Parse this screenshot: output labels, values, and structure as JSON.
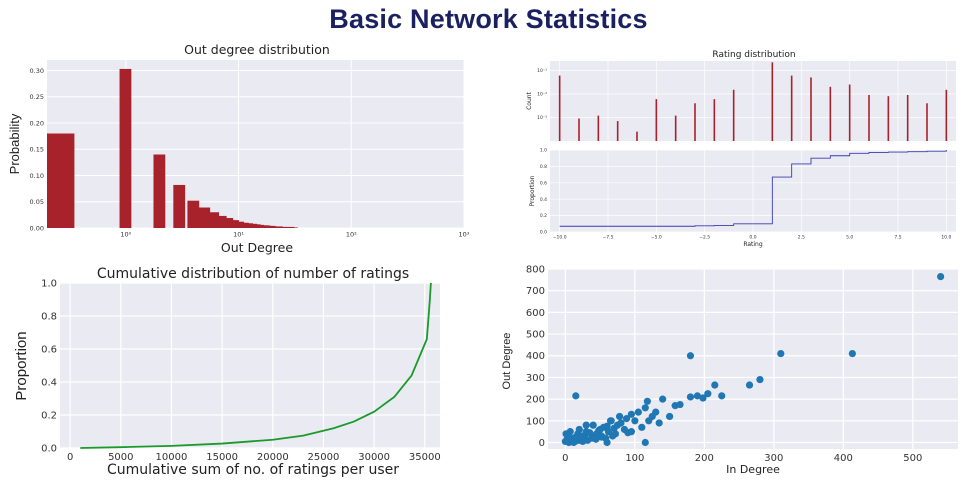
{
  "page": {
    "title": "Basic Network Statistics"
  },
  "colors": {
    "plot_bg": "#eaeaf2",
    "grid": "#ffffff",
    "bar": "#a8222b",
    "step": "#3b3bb0",
    "cum_line": "#1a9a2a",
    "scatter": "#1f77b4"
  },
  "chart_data": [
    {
      "id": "out-degree",
      "type": "bar",
      "title": "Out degree distribution",
      "xlabel": "Out Degree",
      "ylabel": "Probability",
      "xscale": "log",
      "xlim": [
        0.2,
        1000
      ],
      "ylim": [
        0,
        0.32
      ],
      "yticks": [
        0.0,
        0.05,
        0.1,
        0.15,
        0.2,
        0.25,
        0.3
      ],
      "ytick_labels": [
        "0.00",
        "0.05",
        "0.10",
        "0.15",
        "0.20",
        "0.25",
        "0.30"
      ],
      "xticks": [
        1,
        10,
        100,
        1000
      ],
      "xtick_labels": [
        "10⁰",
        "10¹",
        "10²",
        "10³"
      ],
      "x": [
        0,
        1,
        2,
        3,
        4,
        5,
        6,
        7,
        8,
        9,
        10,
        11,
        12,
        13,
        14,
        15,
        16,
        17,
        18,
        19,
        20,
        22,
        24,
        26,
        28,
        30
      ],
      "values": [
        0.18,
        0.303,
        0.14,
        0.082,
        0.052,
        0.039,
        0.03,
        0.023,
        0.019,
        0.015,
        0.012,
        0.01,
        0.009,
        0.008,
        0.007,
        0.006,
        0.005,
        0.005,
        0.004,
        0.004,
        0.003,
        0.003,
        0.002,
        0.002,
        0.002,
        0.001
      ],
      "grid": true
    },
    {
      "id": "rating-distribution",
      "type": "bar",
      "title": "Rating distribution",
      "ylabel": "Count",
      "yscale": "log",
      "xlim": [
        -10.5,
        10.5
      ],
      "ylim": [
        0.0001,
        0.25
      ],
      "yticks": [
        0.001,
        0.01,
        0.1
      ],
      "ytick_labels": [
        "10⁻³",
        "10⁻²",
        "10⁻¹"
      ],
      "xticks": [
        -10,
        -7.5,
        -5,
        -2.5,
        0,
        2.5,
        5,
        7.5,
        10
      ],
      "xtick_labels": [
        "−10.0",
        "−7.5",
        "−5.0",
        "−2.5",
        "0.0",
        "2.5",
        "5.0",
        "7.5",
        "10.0"
      ],
      "x": [
        -10,
        -9,
        -8,
        -7,
        -6,
        -5,
        -4,
        -3,
        -2,
        -1,
        1,
        2,
        3,
        4,
        5,
        6,
        7,
        8,
        9,
        10
      ],
      "values": [
        0.06,
        0.0009,
        0.0012,
        0.0007,
        0.00025,
        0.006,
        0.0012,
        0.004,
        0.006,
        0.015,
        0.22,
        0.06,
        0.05,
        0.02,
        0.025,
        0.009,
        0.008,
        0.009,
        0.004,
        0.015
      ],
      "grid": true
    },
    {
      "id": "rating-cdf",
      "type": "line",
      "xlabel": "Rating",
      "ylabel": "Proportion",
      "step": true,
      "xlim": [
        -10.5,
        10.5
      ],
      "ylim": [
        0,
        1.0
      ],
      "yticks": [
        0.0,
        0.2,
        0.4,
        0.6,
        0.8,
        1.0
      ],
      "ytick_labels": [
        "0.0",
        "0.2",
        "0.4",
        "0.6",
        "0.8",
        "1.0"
      ],
      "xticks": [
        -10,
        -7.5,
        -5,
        -2.5,
        0,
        2.5,
        5,
        7.5,
        10
      ],
      "xtick_labels": [
        "−10.0",
        "−7.5",
        "−5.0",
        "−2.5",
        "0.0",
        "2.5",
        "5.0",
        "7.5",
        "10.0"
      ],
      "x": [
        -10,
        -9,
        -8,
        -7,
        -6,
        -5,
        -4,
        -3,
        -2,
        -1,
        1,
        2,
        3,
        4,
        5,
        6,
        7,
        8,
        9,
        10
      ],
      "values": [
        0.07,
        0.07,
        0.07,
        0.07,
        0.07,
        0.07,
        0.07,
        0.075,
        0.08,
        0.1,
        0.67,
        0.83,
        0.9,
        0.93,
        0.96,
        0.97,
        0.975,
        0.98,
        0.985,
        1.0
      ],
      "grid": true
    },
    {
      "id": "cumulative-ratings",
      "type": "line",
      "title": "Cumulative distribution of number of ratings",
      "xlabel": "Cumulative sum of no. of ratings per user",
      "ylabel": "Proportion",
      "xlim": [
        -1000,
        36500
      ],
      "ylim": [
        0,
        1.0
      ],
      "yticks": [
        0.0,
        0.2,
        0.4,
        0.6,
        0.8,
        1.0
      ],
      "ytick_labels": [
        "0.0",
        "0.2",
        "0.4",
        "0.6",
        "0.8",
        "1.0"
      ],
      "xticks": [
        0,
        5000,
        10000,
        15000,
        20000,
        25000,
        30000,
        35000
      ],
      "xtick_labels": [
        "0",
        "5000",
        "10000",
        "15000",
        "20000",
        "25000",
        "30000",
        "35000"
      ],
      "x": [
        1000,
        5000,
        10000,
        15000,
        20000,
        23000,
        26000,
        28000,
        30000,
        32000,
        33700,
        35200,
        35500,
        35600
      ],
      "values": [
        0.0,
        0.005,
        0.013,
        0.027,
        0.05,
        0.075,
        0.12,
        0.16,
        0.22,
        0.31,
        0.44,
        0.66,
        0.9,
        1.0
      ],
      "grid": true
    },
    {
      "id": "in-out-degree",
      "type": "scatter",
      "xlabel": "In Degree",
      "ylabel": "Out Degree",
      "xlim": [
        -25,
        565
      ],
      "ylim": [
        -30,
        800
      ],
      "xticks": [
        0,
        100,
        200,
        300,
        400,
        500
      ],
      "xtick_labels": [
        "0",
        "100",
        "200",
        "300",
        "400",
        "500"
      ],
      "yticks": [
        0,
        100,
        200,
        300,
        400,
        500,
        600,
        700,
        800
      ],
      "ytick_labels": [
        "0",
        "100",
        "200",
        "300",
        "400",
        "500",
        "600",
        "700",
        "800"
      ],
      "x": [
        0,
        2,
        4,
        6,
        8,
        10,
        3,
        5,
        1,
        12,
        15,
        18,
        20,
        25,
        7,
        9,
        14,
        22,
        28,
        30,
        32,
        35,
        38,
        40,
        42,
        45,
        48,
        50,
        52,
        55,
        58,
        60,
        62,
        65,
        68,
        70,
        72,
        75,
        78,
        80,
        85,
        88,
        90,
        95,
        100,
        105,
        110,
        115,
        118,
        120,
        125,
        130,
        135,
        140,
        150,
        158,
        165,
        180,
        190,
        198,
        205,
        215,
        225,
        265,
        280,
        180,
        15,
        52,
        310,
        413,
        540,
        12,
        20,
        30,
        60,
        95,
        115,
        25,
        44,
        66
      ],
      "values": [
        5,
        10,
        15,
        2,
        20,
        8,
        30,
        0,
        40,
        12,
        25,
        40,
        10,
        30,
        50,
        15,
        5,
        20,
        25,
        50,
        10,
        45,
        20,
        80,
        30,
        40,
        55,
        60,
        25,
        70,
        20,
        75,
        50,
        100,
        30,
        65,
        40,
        80,
        120,
        90,
        60,
        110,
        45,
        130,
        100,
        140,
        70,
        160,
        190,
        100,
        120,
        140,
        90,
        200,
        120,
        170,
        175,
        210,
        215,
        205,
        225,
        265,
        215,
        265,
        290,
        400,
        215,
        30,
        410,
        410,
        765,
        0,
        60,
        80,
        0,
        50,
        0,
        5,
        15,
        100
      ],
      "grid": true
    }
  ]
}
